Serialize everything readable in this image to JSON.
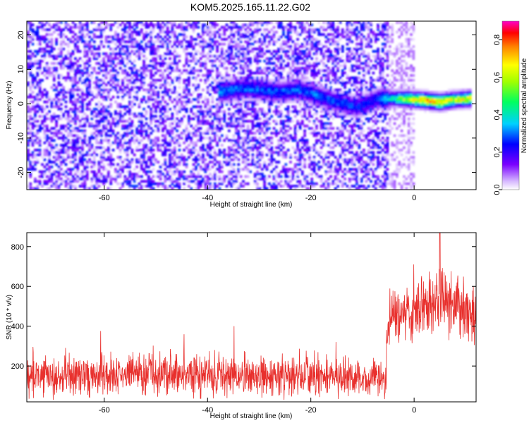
{
  "title": "KOM5.2025.165.11.22.G02",
  "chart_data": [
    {
      "type": "heatmap",
      "xlabel": "Height of straight line (km)",
      "ylabel": "Frequency (Hz)",
      "xlim": [
        -75,
        12
      ],
      "ylim": [
        -25,
        24
      ],
      "xticks": [
        -60,
        -40,
        -20,
        0
      ],
      "yticks": [
        -20,
        -10,
        0,
        10,
        20
      ],
      "colorbar": {
        "label": "Normalized spectral amplitude",
        "range": [
          0,
          0.9
        ],
        "ticks": [
          0.0,
          0.2,
          0.4,
          0.6,
          0.8
        ],
        "colormap": "rainbow-white-to-magenta"
      },
      "ridge": [
        {
          "x": -38,
          "y": 3.5,
          "z": 0.38
        },
        {
          "x": -33,
          "y": 4.5,
          "z": 0.33
        },
        {
          "x": -26,
          "y": 3.5,
          "z": 0.33
        },
        {
          "x": -22,
          "y": 4.0,
          "z": 0.35
        },
        {
          "x": -15,
          "y": 0.5,
          "z": 0.32
        },
        {
          "x": -11,
          "y": -1.0,
          "z": 0.3
        },
        {
          "x": -7,
          "y": 1.5,
          "z": 0.3
        },
        {
          "x": -2,
          "y": 1.5,
          "z": 0.62
        },
        {
          "x": 2,
          "y": 1.0,
          "z": 0.88
        },
        {
          "x": 5,
          "y": 0.5,
          "z": 0.8
        },
        {
          "x": 8,
          "y": 1.2,
          "z": 0.72
        },
        {
          "x": 11,
          "y": 1.5,
          "z": 0.75
        }
      ]
    },
    {
      "type": "line",
      "xlabel": "Height of straight line (km)",
      "ylabel": "SNR (10 * v/v)",
      "xlim": [
        -75,
        12
      ],
      "ylim": [
        20,
        870
      ],
      "xticks": [
        -60,
        -40,
        -20,
        0
      ],
      "yticks": [
        200,
        400,
        600,
        800
      ],
      "series": [
        {
          "color": "#e8302d",
          "envelope": [
            {
              "x": -75,
              "mean": 150,
              "spread": 110
            },
            {
              "x": -50,
              "mean": 155,
              "spread": 120
            },
            {
              "x": -25,
              "mean": 150,
              "spread": 115
            },
            {
              "x": -9,
              "mean": 140,
              "spread": 100
            },
            {
              "x": -5.5,
              "mean": 150,
              "spread": 110
            },
            {
              "x": -5,
              "mean": 430,
              "spread": 150
            },
            {
              "x": 0,
              "mean": 470,
              "spread": 160
            },
            {
              "x": 5,
              "mean": 540,
              "spread": 200
            },
            {
              "x": 9,
              "mean": 480,
              "spread": 150
            },
            {
              "x": 12,
              "mean": 450,
              "spread": 150
            }
          ],
          "peak": {
            "x": 5,
            "y": 870
          }
        }
      ]
    }
  ]
}
